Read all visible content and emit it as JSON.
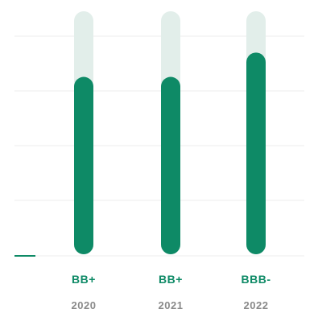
{
  "chart_data": {
    "type": "bar",
    "categories": [
      "2020",
      "2021",
      "2022"
    ],
    "ratings": [
      "BB+",
      "BB+",
      "BBB-"
    ],
    "values": [
      0.73,
      0.73,
      0.83
    ],
    "ylim": [
      0,
      1
    ],
    "grid": true,
    "title": "",
    "xlabel": "",
    "ylabel": ""
  },
  "colors": {
    "bar_fill": "#0e8a66",
    "bar_track": "#e2eeea",
    "baseline": "#0e8a66",
    "gridline": "#eeeeee",
    "rating_text": "#0e8a66",
    "year_text": "#8a8a8a"
  }
}
